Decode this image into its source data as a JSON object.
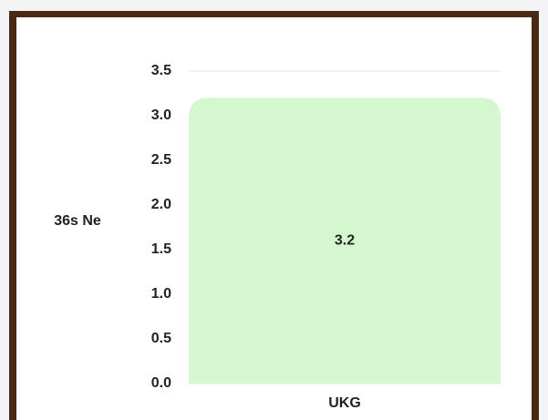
{
  "chart_data": {
    "type": "bar",
    "ylabel": "36s Ne",
    "categories": [
      "UKG"
    ],
    "values": [
      3.2
    ],
    "color": "#d5f7cf",
    "ylim": [
      0,
      3.5
    ],
    "yticks": [
      {
        "value": 0,
        "label": "0.0"
      },
      0.5,
      {
        "value": 1,
        "label": "1.0"
      },
      1.5,
      {
        "value": 2,
        "label": "2.0"
      },
      2.5,
      {
        "value": 3,
        "label": "3.0"
      },
      3.5
    ],
    "grid": true
  }
}
